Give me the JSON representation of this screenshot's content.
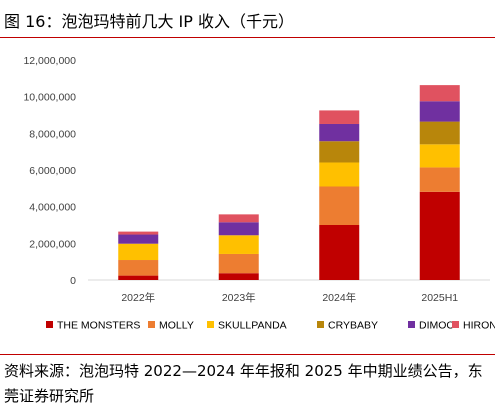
{
  "figure": {
    "title": "图 16：泡泡玛特前几大 IP 收入（千元）",
    "source": "资料来源：泡泡玛特 2022—2024 年年报和 2025 年中期业绩公告，东莞证券研究所"
  },
  "colors": {
    "rule": "#c00000",
    "THE MONSTERS": "#c00000",
    "MOLLY": "#ed7d31",
    "SKULLPANDA": "#ffc000",
    "CRYBABY": "#b8860b",
    "DIMOO": "#7030a0",
    "HIRONO": "#e05260"
  },
  "chart_data": {
    "type": "bar",
    "stacked": true,
    "categories": [
      "2022年",
      "2023年",
      "2024年",
      "2025H1"
    ],
    "series": [
      {
        "name": "THE MONSTERS",
        "values": [
          240000,
          370000,
          3000000,
          4810000
        ]
      },
      {
        "name": "MOLLY",
        "values": [
          850000,
          1050000,
          2100000,
          1330000
        ]
      },
      {
        "name": "SKULLPANDA",
        "values": [
          890000,
          1020000,
          1310000,
          1260000
        ]
      },
      {
        "name": "CRYBABY",
        "values": [
          0,
          0,
          1160000,
          1240000
        ]
      },
      {
        "name": "DIMOO",
        "values": [
          500000,
          710000,
          940000,
          1110000
        ]
      },
      {
        "name": "HIRONO",
        "values": [
          160000,
          430000,
          740000,
          880000
        ]
      }
    ],
    "yticks": [
      "0",
      "2,000,000",
      "4,000,000",
      "6,000,000",
      "8,000,000",
      "10,000,000",
      "12,000,000"
    ],
    "ylim": [
      0,
      12000000
    ],
    "grid": false,
    "legend_position": "bottom"
  }
}
